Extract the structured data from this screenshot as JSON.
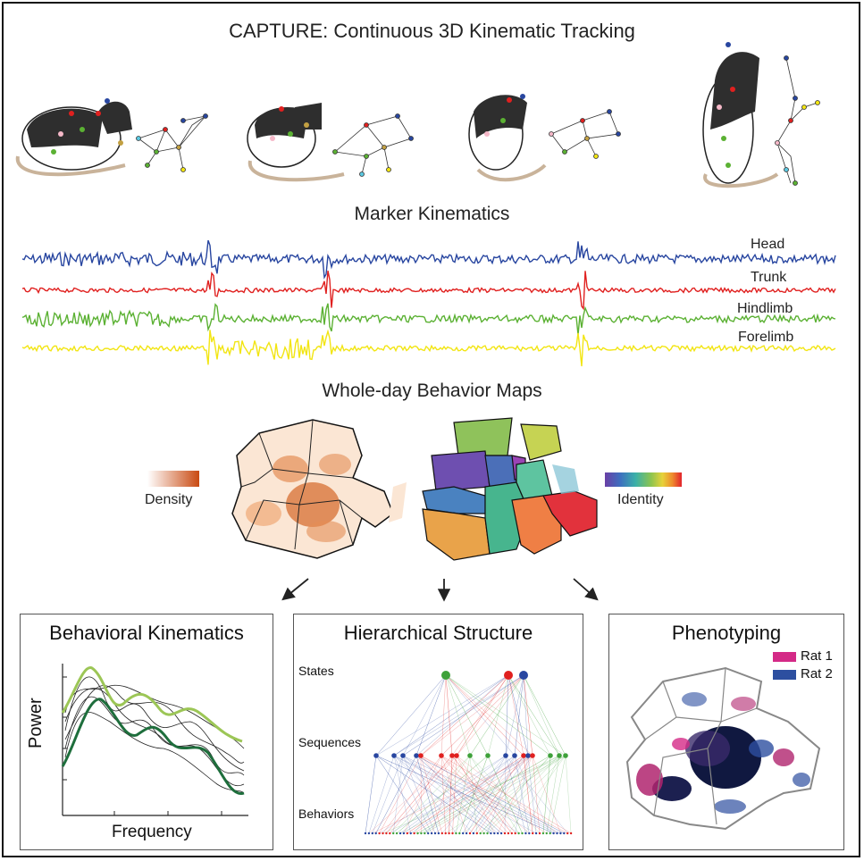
{
  "title": "CAPTURE: Continuous 3D Kinematic Tracking",
  "sections": {
    "marker_kinematics": "Marker Kinematics",
    "behavior_maps": "Whole-day Behavior Maps"
  },
  "traces": [
    {
      "label": "Head",
      "color": "#2846a0"
    },
    {
      "label": "Trunk",
      "color": "#e0201f"
    },
    {
      "label": "Hindlimb",
      "color": "#5bb133"
    },
    {
      "label": "Forelimb",
      "color": "#f2e512"
    }
  ],
  "maps": {
    "density_label": "Density",
    "identity_label": "Identity"
  },
  "panels": {
    "kinematics": {
      "title": "Behavioral Kinematics",
      "xlabel": "Frequency",
      "ylabel": "Power"
    },
    "hierarchy": {
      "title": "Hierarchical Structure",
      "levels": [
        "States",
        "Sequences",
        "Behaviors"
      ]
    },
    "phenotyping": {
      "title": "Phenotyping",
      "legend": [
        {
          "label": "Rat 1",
          "color": "#d42a87"
        },
        {
          "label": "Rat 2",
          "color": "#2d4fa0"
        }
      ]
    }
  }
}
